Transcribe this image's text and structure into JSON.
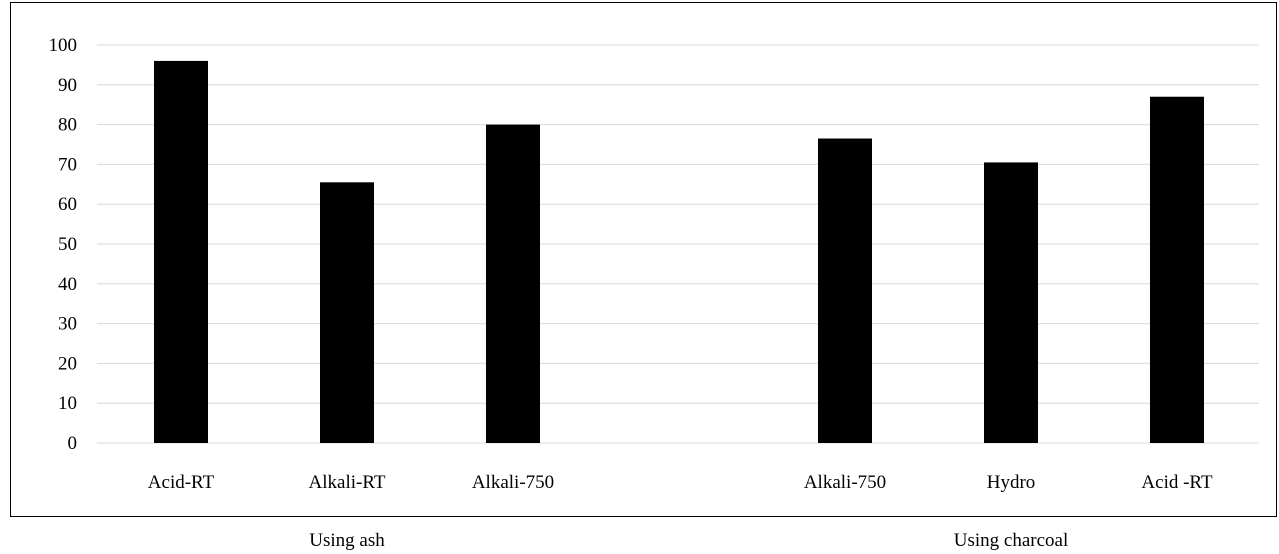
{
  "chart_data": {
    "type": "bar",
    "categories": [
      "Acid-RT",
      "Alkali-RT",
      "Alkali-750",
      "",
      "Alkali-750",
      "Hydro",
      "Acid -RT"
    ],
    "values": [
      96,
      65.5,
      80,
      null,
      76.5,
      70.5,
      87
    ],
    "groups": [
      {
        "label": "Using ash",
        "categories": [
          "Acid-RT",
          "Alkali-RT",
          "Alkali-750"
        ]
      },
      {
        "label": "Using charcoal",
        "categories": [
          "Alkali-750",
          "Hydro",
          "Acid -RT"
        ]
      }
    ],
    "ylim": [
      0,
      100
    ],
    "yticks": [
      0,
      10,
      20,
      30,
      40,
      50,
      60,
      70,
      80,
      90,
      100
    ],
    "grid": true,
    "bar_color": "#000000",
    "grid_color": "#d9d9d9"
  }
}
